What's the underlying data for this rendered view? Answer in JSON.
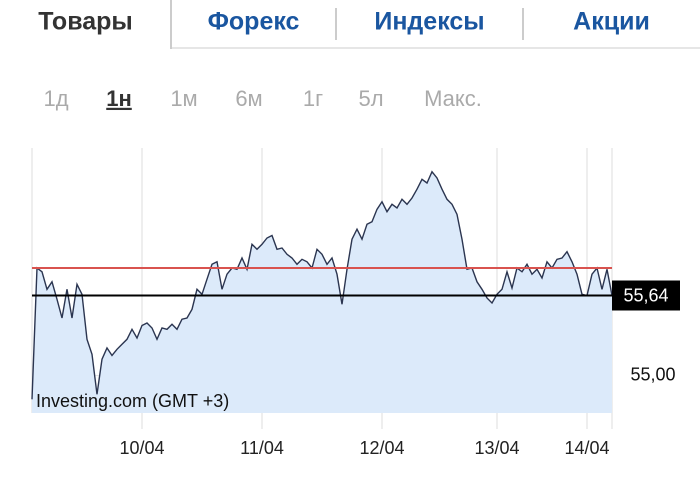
{
  "tabs": [
    "Товары",
    "Форекс",
    "Индексы",
    "Акции"
  ],
  "active_tab": 0,
  "ranges": [
    "1д",
    "1н",
    "1м",
    "6м",
    "1г",
    "5л",
    "Макс."
  ],
  "active_range": 1,
  "chart_data": {
    "type": "area",
    "watermark": "Investing.com (GMT +3)",
    "color": "#2b3550",
    "fill": "#dceafa",
    "values": [
      54.81,
      55.86,
      55.83,
      55.69,
      55.75,
      55.61,
      55.46,
      55.69,
      55.46,
      55.73,
      55.65,
      55.29,
      55.17,
      54.85,
      55.13,
      55.22,
      55.16,
      55.21,
      55.25,
      55.29,
      55.37,
      55.3,
      55.4,
      55.42,
      55.38,
      55.29,
      55.38,
      55.37,
      55.41,
      55.37,
      55.45,
      55.46,
      55.53,
      55.69,
      55.65,
      55.77,
      55.89,
      55.91,
      55.69,
      55.81,
      55.86,
      55.85,
      55.94,
      55.85,
      56.05,
      56.01,
      56.05,
      56.1,
      56.12,
      56.01,
      56.02,
      55.97,
      55.94,
      55.89,
      55.93,
      55.91,
      55.86,
      56.01,
      55.97,
      55.89,
      55.94,
      55.81,
      55.57,
      55.85,
      56.09,
      56.17,
      56.09,
      56.21,
      56.23,
      56.33,
      56.39,
      56.31,
      56.37,
      56.34,
      56.41,
      56.37,
      56.42,
      56.49,
      56.57,
      56.54,
      56.63,
      56.58,
      56.49,
      56.41,
      56.37,
      56.29,
      56.09,
      55.85,
      55.86,
      55.75,
      55.69,
      55.62,
      55.58,
      55.65,
      55.69,
      55.83,
      55.7,
      55.86,
      55.83,
      55.89,
      55.81,
      55.85,
      55.78,
      55.91,
      55.86,
      55.93,
      55.94,
      55.99,
      55.91,
      55.81,
      55.65,
      55.64,
      55.81,
      55.86,
      55.69,
      55.85,
      55.64
    ],
    "xlim": [
      0,
      116
    ],
    "xticks": [
      {
        "value": 22,
        "label": "10/04"
      },
      {
        "value": 46,
        "label": "11/04"
      },
      {
        "value": 70,
        "label": "12/04"
      },
      {
        "value": 93,
        "label": "13/04"
      },
      {
        "value": 111,
        "label": "14/04"
      }
    ],
    "ylim": [
      54.7,
      56.82
    ],
    "yticks": [
      {
        "value": 55,
        "label": "55,00"
      }
    ],
    "reference_line": {
      "value": 55.86,
      "color": "#d9534f"
    },
    "last": {
      "value": 55.64,
      "label": "55,64",
      "color": "#000000"
    },
    "grid": true
  }
}
